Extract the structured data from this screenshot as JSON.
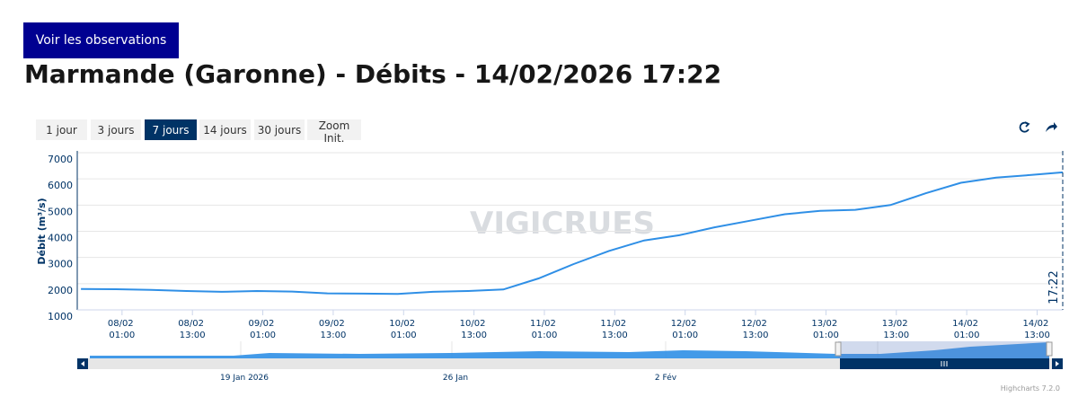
{
  "button": "Voir les observations",
  "title": "Marmande (Garonne) - Débits - 14/02/2026 17:22",
  "range_buttons": [
    "1 jour",
    "3 jours",
    "7 jours",
    "14 jours",
    "30 jours",
    "Zoom Init."
  ],
  "selected_range": 2,
  "chart_data": {
    "type": "line",
    "y_label": "Débit (m³/s)",
    "watermark": "VIGICRUES",
    "color": "#2f8fe6",
    "x": [
      "07/02 18:00",
      "08/02 00:00",
      "08/02 06:00",
      "08/02 12:00",
      "08/02 18:00",
      "09/02 00:00",
      "09/02 06:00",
      "09/02 12:00",
      "09/02 18:00",
      "10/02 00:00",
      "10/02 06:00",
      "10/02 12:00",
      "10/02 18:00",
      "11/02 00:00",
      "11/02 06:00",
      "11/02 12:00",
      "11/02 18:00",
      "12/02 00:00",
      "12/02 06:00",
      "12/02 12:00",
      "12/02 18:00",
      "13/02 00:00",
      "13/02 06:00",
      "13/02 12:00",
      "13/02 18:00",
      "14/02 00:00",
      "14/02 06:00",
      "14/02 12:00",
      "14/02 17:22"
    ],
    "values": [
      1800,
      1790,
      1760,
      1720,
      1690,
      1720,
      1700,
      1630,
      1620,
      1610,
      1690,
      1720,
      1780,
      2200,
      2750,
      3250,
      3650,
      3850,
      4150,
      4400,
      4650,
      4780,
      4820,
      5000,
      5450,
      5850,
      6050,
      6150,
      6250
    ],
    "xlim": [
      "07/02 17:22",
      "14/02 17:22"
    ],
    "xticks": [
      "08/02 01:00",
      "08/02 13:00",
      "09/02 01:00",
      "09/02 13:00",
      "10/02 01:00",
      "10/02 13:00",
      "11/02 01:00",
      "11/02 13:00",
      "12/02 01:00",
      "12/02 13:00",
      "13/02 01:00",
      "13/02 13:00",
      "14/02 01:00",
      "14/02 13:00"
    ],
    "ylim": [
      1000,
      7000
    ],
    "yticks": [
      1000,
      2000,
      3000,
      4000,
      5000,
      6000,
      7000
    ],
    "grid": true,
    "plot_line": {
      "x": "14/02 17:22",
      "label": "17:22"
    }
  },
  "navigator": {
    "labels": [
      "19 Jan 2026",
      "26 Jan",
      "2 Fév"
    ]
  },
  "credits": "Highcharts 7.2.0"
}
